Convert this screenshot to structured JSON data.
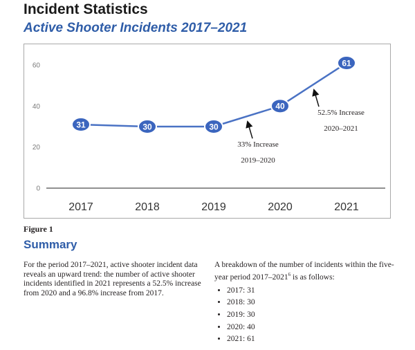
{
  "header": {
    "title": "Incident Statistics",
    "subtitle": "Active Shooter Incidents 2017–2021"
  },
  "colors": {
    "line": "#4a72c4",
    "marker_fill": "#3b65be",
    "marker_stroke": "#ffffff",
    "heading_accent": "#2f5da8"
  },
  "chart_data": {
    "type": "line",
    "categories": [
      "2017",
      "2018",
      "2019",
      "2020",
      "2021"
    ],
    "values": [
      31,
      30,
      30,
      40,
      61
    ],
    "data_labels": [
      "31",
      "30",
      "30",
      "40",
      "61"
    ],
    "yticks": [
      "0",
      "20",
      "40",
      "60"
    ],
    "ylim": [
      0,
      65
    ],
    "grid": false,
    "legend": "none",
    "annotations": [
      {
        "line1": "33% Increase",
        "line2": "2019–2020"
      },
      {
        "line1": "52.5% Increase",
        "line2": "2020–2021"
      }
    ]
  },
  "figure_label": "Figure 1",
  "summary": {
    "heading": "Summary",
    "paragraph": "For the period 2017–2021, active shooter incident data reveals an upward trend: the number of active shooter incidents identified in 2021 represents a 52.5% increase from 2020 and a 96.8% increase from 2017.",
    "breakdown_intro_before": "A breakdown of the number of incidents within the five-year period 2017–2021",
    "footnote_marker": "6",
    "breakdown_intro_after": " is as follows:",
    "breakdown": [
      "2017: 31",
      "2018: 30",
      "2019: 30",
      "2020: 40",
      "2021: 61"
    ]
  }
}
